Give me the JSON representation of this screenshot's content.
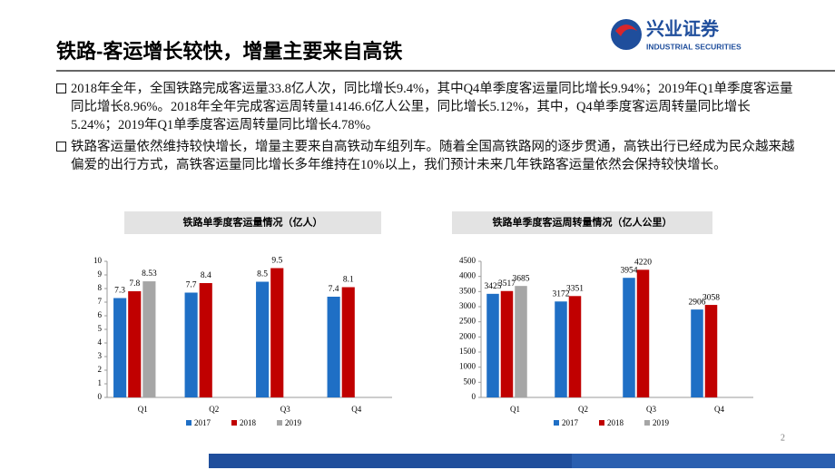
{
  "header": {
    "title": "铁路-客运增长较快，增量主要来自高铁",
    "logo_name": "兴业证券",
    "logo_sub": "INDUSTRIAL SECURITIES"
  },
  "bullets": [
    "2018年全年，全国铁路完成客运量33.8亿人次，同比增长9.4%，其中Q4单季度客运量同比增长9.94%；2019年Q1单季度客运量同比增长8.96%。2018年全年完成客运周转量14146.6亿人公里，同比增长5.12%，其中，Q4单季度客运周转量同比增长5.24%；2019年Q1单季度客运周转量同比增长4.78%。",
    "铁路客运量依然维持较快增长，增量主要来自高铁动车组列车。随着全国高铁路网的逐步贯通，高铁出行已经成为民众越来越偏爱的出行方式，高铁客运量同比增长多年维持在10%以上，我们预计未来几年铁路客运量依然会保持较快增长。"
  ],
  "page_number": "2",
  "chart_data": [
    {
      "type": "bar",
      "title": "铁路单季度客运量情况（亿人）",
      "categories": [
        "Q1",
        "Q2",
        "Q3",
        "Q4"
      ],
      "series": [
        {
          "name": "2017",
          "color": "#1f6fc5",
          "values": [
            7.3,
            7.7,
            8.5,
            7.4
          ]
        },
        {
          "name": "2018",
          "color": "#c00000",
          "values": [
            7.8,
            8.4,
            9.5,
            8.1
          ]
        },
        {
          "name": "2019",
          "color": "#a6a6a6",
          "values": [
            8.53,
            null,
            null,
            null
          ]
        }
      ],
      "ylim": [
        0,
        10
      ],
      "yticks": [
        0,
        1,
        2,
        3,
        4,
        5,
        6,
        7,
        8,
        9,
        10
      ],
      "legend": "bottom"
    },
    {
      "type": "bar",
      "title": "铁路单季度客运周转量情况（亿人公里）",
      "categories": [
        "Q1",
        "Q2",
        "Q3",
        "Q4"
      ],
      "series": [
        {
          "name": "2017",
          "color": "#1f6fc5",
          "values": [
            3425,
            3172,
            3954,
            2906
          ]
        },
        {
          "name": "2018",
          "color": "#c00000",
          "values": [
            3517,
            3351,
            4220,
            3058
          ]
        },
        {
          "name": "2019",
          "color": "#a6a6a6",
          "values": [
            3685,
            null,
            null,
            null
          ]
        }
      ],
      "ylim": [
        0,
        4500
      ],
      "yticks": [
        0,
        500,
        1000,
        1500,
        2000,
        2500,
        3000,
        3500,
        4000,
        4500
      ],
      "legend": "bottom"
    }
  ]
}
